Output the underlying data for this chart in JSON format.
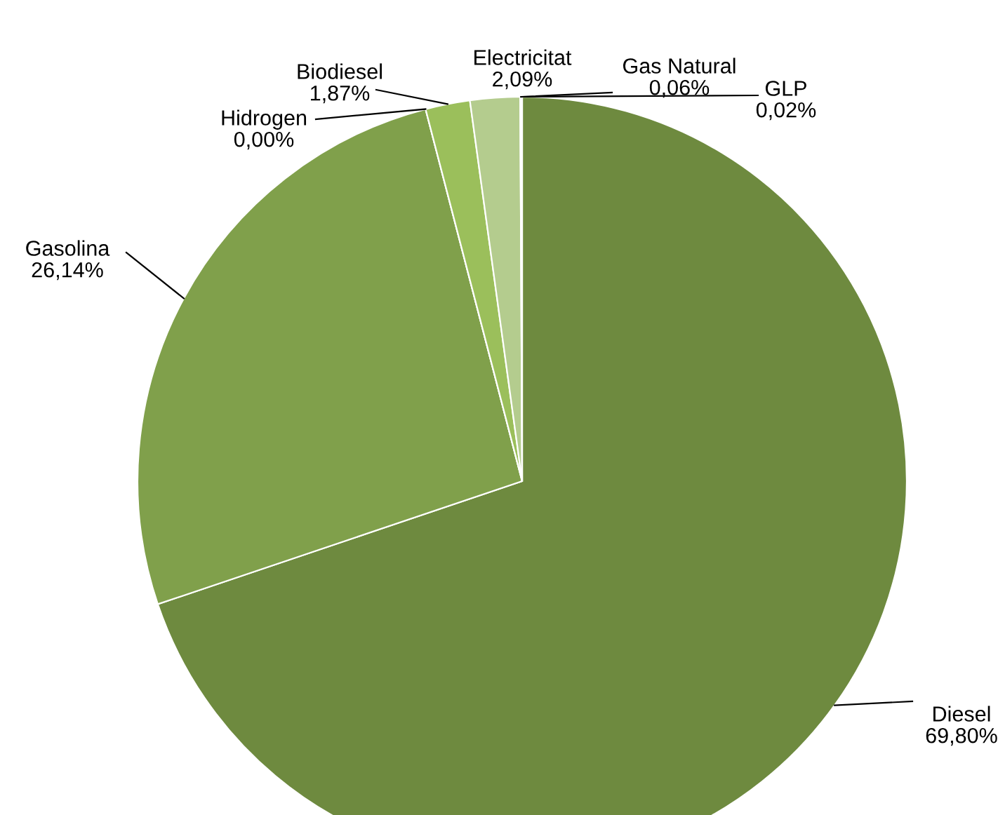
{
  "chart_data": {
    "type": "pie",
    "categories": [
      "Diesel",
      "Gasolina",
      "Hidrogen",
      "Biodiesel",
      "Electricitat",
      "Gas Natural",
      "GLP"
    ],
    "values": [
      69.8,
      26.14,
      0.0,
      1.87,
      2.09,
      0.06,
      0.02
    ],
    "value_labels": [
      "69,80%",
      "26,14%",
      "0,00%",
      "1,87%",
      "2,09%",
      "0,06%",
      "0,02%"
    ],
    "colors": [
      "#6e8a3f",
      "#80a04b",
      "#8fb052",
      "#9bbf5b",
      "#b4cc8e",
      "#c8dbaa",
      "#d8e6c2"
    ],
    "legend": false
  }
}
